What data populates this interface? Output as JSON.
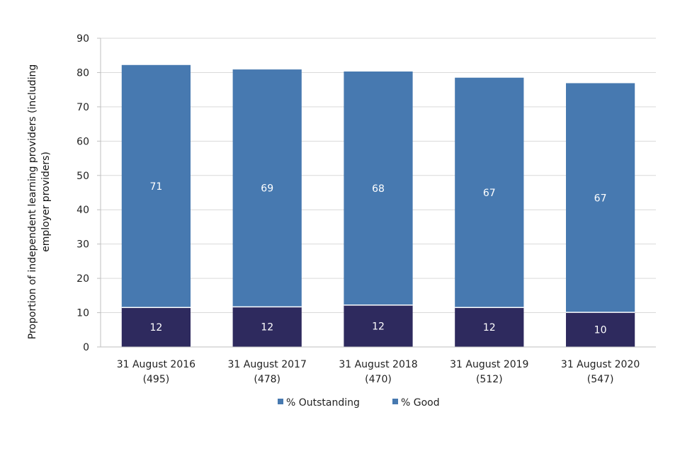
{
  "chart_data": {
    "type": "bar",
    "stacked": true,
    "categories": [
      [
        "31 August 2016",
        "(495)"
      ],
      [
        "31 August 2017",
        "(478)"
      ],
      [
        "31 August 2018",
        "(470)"
      ],
      [
        "31 August 2019",
        "(512)"
      ],
      [
        "31 August 2020",
        "(547)"
      ]
    ],
    "series": [
      {
        "name": "% Outstanding",
        "values": [
          11.5,
          11.7,
          12.2,
          11.5,
          10.1
        ],
        "labels": [
          "12",
          "12",
          "12",
          "12",
          "10"
        ],
        "color": "#2e2a5e"
      },
      {
        "name": "% Good",
        "values": [
          70.7,
          69.2,
          68.1,
          67.0,
          66.8
        ],
        "labels": [
          "71",
          "69",
          "68",
          "67",
          "67"
        ],
        "color": "#4779b0"
      }
    ],
    "legend_items": [
      {
        "name": "% Outstanding",
        "color": "#4779b0"
      },
      {
        "name": "% Good",
        "color": "#4779b0"
      }
    ],
    "title": "",
    "xlabel": "",
    "ylabel": [
      "Proportion of independent learning providers (including",
      "employer providers)"
    ],
    "ylim": [
      0,
      90
    ],
    "yticks": [
      0,
      10,
      20,
      30,
      40,
      50,
      60,
      70,
      80,
      90
    ],
    "grid": true,
    "legend_position": "bottom"
  }
}
